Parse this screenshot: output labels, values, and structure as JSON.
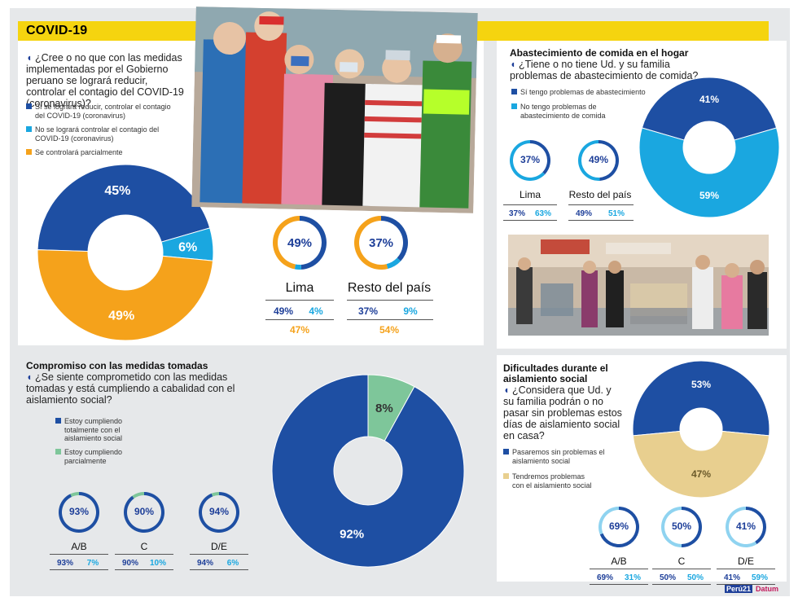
{
  "banner": {
    "title": "COVID-19"
  },
  "main": {
    "question": "¿Cree o no que con las medidas implementadas por el Gobierno peruano se logrará reducir, controlar el contagio del COVID-19 (coronavirus)?",
    "legend": [
      {
        "label": "Sí se logrará reducir, controlar el contagio del COVID-19 (coronavirus)",
        "color": "#1e4fa3"
      },
      {
        "label": "No se logrará controlar el contagio del COVID-19 (coronavirus)",
        "color": "#1aa7e0"
      },
      {
        "label": "Se controlará parcialmente",
        "color": "#f5a21b"
      }
    ],
    "lima": {
      "label": "Lima",
      "center": "49%",
      "v1": "49%",
      "v2": "4%",
      "v3": "47%"
    },
    "resto": {
      "label": "Resto del país",
      "center": "37%",
      "v1": "37%",
      "v2": "9%",
      "v3": "54%"
    }
  },
  "food": {
    "title": "Abastecimiento de comida en el hogar",
    "question": "¿Tiene o no tiene Ud. y su familia problemas de abastecimiento de comida?",
    "legend": [
      {
        "label": "Sí tengo problemas de abastecimiento",
        "color": "#1e4fa3"
      },
      {
        "label": "No tengo problemas de abastecimiento de comida",
        "color": "#1aa7e0"
      }
    ],
    "lima": {
      "label": "Lima",
      "center": "37%",
      "v1": "37%",
      "v2": "63%"
    },
    "resto": {
      "label": "Resto del país",
      "center": "49%",
      "v1": "49%",
      "v2": "51%"
    }
  },
  "commit": {
    "title": "Compromiso con las medidas tomadas",
    "question": "¿Se siente comprometido con las medidas tomadas y está cumpliendo a cabalidad con el aislamiento social?",
    "legend": [
      {
        "label": "Estoy cumpliendo totalmente con el aislamiento social",
        "color": "#1e4fa3"
      },
      {
        "label": "Estoy cumpliendo parcialmente",
        "color": "#7ec69a"
      }
    ],
    "groups": [
      {
        "label": "A/B",
        "center": "93%",
        "v1": "93%",
        "v2": "7%"
      },
      {
        "label": "C",
        "center": "90%",
        "v1": "90%",
        "v2": "10%"
      },
      {
        "label": "D/E",
        "center": "94%",
        "v1": "94%",
        "v2": "6%"
      }
    ]
  },
  "difficult": {
    "title": "Dificultades durante el aislamiento social",
    "question": "¿Considera que Ud. y su familia podrán o no pasar sin problemas estos días de aislamiento social en casa?",
    "legend": [
      {
        "label": "Pasaremos sin problemas el aislamiento social",
        "color": "#1e4fa3"
      },
      {
        "label": "Tendremos problemas con el aislamiento social",
        "color": "#e8cf8f"
      }
    ],
    "groups": [
      {
        "label": "A/B",
        "center": "69%",
        "v1": "69%",
        "v2": "31%"
      },
      {
        "label": "C",
        "center": "50%",
        "v1": "50%",
        "v2": "50%"
      },
      {
        "label": "D/E",
        "center": "41%",
        "v1": "41%",
        "v2": "59%"
      }
    ]
  },
  "footer": {
    "logo1": "Perú21",
    "logo2": "Datum"
  },
  "chart_data": [
    {
      "type": "pie",
      "categories": [
        "Sí se logrará reducir, controlar el contagio del COVID-19 (coronavirus)",
        "No se logrará controlar el contagio del COVID-19 (coronavirus)",
        "Se controlará parcialmente"
      ],
      "values": [
        45,
        6,
        49
      ],
      "labels": [
        "45%",
        "6%",
        "49%"
      ]
    },
    {
      "type": "pie",
      "categories": [
        "Sí tengo problemas de abastecimiento",
        "No tengo problemas de abastecimiento de comida"
      ],
      "values": [
        41,
        59
      ],
      "labels": [
        "41%",
        "59%"
      ]
    },
    {
      "type": "pie",
      "categories": [
        "Estoy cumpliendo totalmente con el aislamiento social",
        "Estoy cumpliendo parcialmente"
      ],
      "values": [
        92,
        8
      ],
      "labels": [
        "92%",
        "8%"
      ]
    },
    {
      "type": "pie",
      "categories": [
        "Pasaremos sin problemas el aislamiento social",
        "Tendremos problemas con el aislamiento social"
      ],
      "values": [
        53,
        47
      ],
      "labels": [
        "53%",
        "47%"
      ]
    }
  ]
}
